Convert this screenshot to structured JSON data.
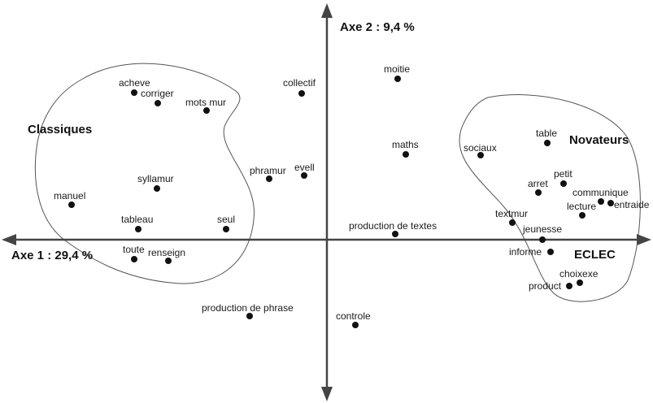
{
  "axes": {
    "axis1_label": "Axe 1 : 29,4 %",
    "axis2_label": "Axe 2 : 9,4 %",
    "eclec_label": "ECLEC"
  },
  "groups": {
    "classiques": "Classiques",
    "novateurs": "Novateurs"
  },
  "points": [
    {
      "id": "acheve",
      "label": "acheve"
    },
    {
      "id": "corriger",
      "label": "corriger"
    },
    {
      "id": "mots-mur",
      "label": "mots mur"
    },
    {
      "id": "collectif",
      "label": "collectif"
    },
    {
      "id": "moitie",
      "label": "moitie"
    },
    {
      "id": "maths",
      "label": "maths"
    },
    {
      "id": "phramur",
      "label": "phramur"
    },
    {
      "id": "evell",
      "label": "evell"
    },
    {
      "id": "syllamur",
      "label": "syllamur"
    },
    {
      "id": "manuel",
      "label": "manuel"
    },
    {
      "id": "tableau",
      "label": "tableau"
    },
    {
      "id": "seul",
      "label": "seul"
    },
    {
      "id": "toute",
      "label": "toute"
    },
    {
      "id": "renseign",
      "label": "renseign"
    },
    {
      "id": "production-de-textes",
      "label": "production de textes"
    },
    {
      "id": "production-de-phrase",
      "label": "production de phrase"
    },
    {
      "id": "controle",
      "label": "controle"
    },
    {
      "id": "sociaux",
      "label": "sociaux"
    },
    {
      "id": "table",
      "label": "table"
    },
    {
      "id": "petit",
      "label": "petit"
    },
    {
      "id": "arret",
      "label": "arret"
    },
    {
      "id": "communique",
      "label": "communique"
    },
    {
      "id": "lecture",
      "label": "lecture"
    },
    {
      "id": "entraide",
      "label": "entraide"
    },
    {
      "id": "textmur",
      "label": "textmur"
    },
    {
      "id": "jeunesse",
      "label": "jeunesse"
    },
    {
      "id": "informe",
      "label": "informe"
    },
    {
      "id": "choixexe",
      "label": "choixexe"
    },
    {
      "id": "product",
      "label": "product"
    }
  ]
}
